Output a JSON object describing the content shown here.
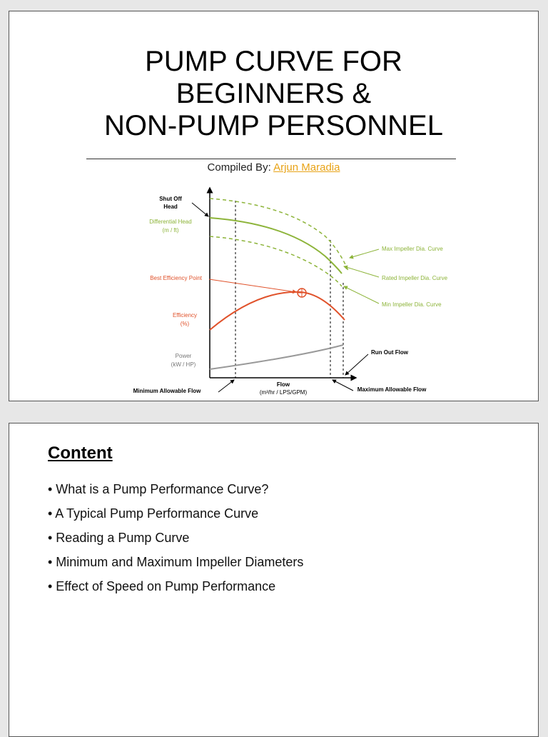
{
  "slide1": {
    "title_lines": [
      "PUMP CURVE FOR",
      "BEGINNERS &",
      "NON-PUMP PERSONNEL"
    ],
    "compiled_by_label": "Compiled By:",
    "author": "Arjun Maradia",
    "diagram": {
      "shut_off_head": [
        "Shut Off",
        "Head"
      ],
      "differential_head": [
        "Differential Head",
        "(m / ft)"
      ],
      "best_efficiency_point": "Best Efficiency Point",
      "efficiency": [
        "Efficiency",
        "(%)"
      ],
      "power": [
        "Power",
        "(kW / HP)"
      ],
      "flow": [
        "Flow",
        "(m³/hr / LPS/GPM)"
      ],
      "minimum_allowable_flow": "Minimum Allowable Flow",
      "maximum_allowable_flow": "Maximum Allowable Flow",
      "run_out_flow": "Run Out Flow",
      "max_impeller_curve": "Max Impeller Dia. Curve",
      "rated_impeller_curve": "Rated Impeller Dia. Curve",
      "min_impeller_curve": "Min Impeller Dia. Curve"
    }
  },
  "slide2": {
    "heading": "Content",
    "items": [
      "• What is a Pump Performance Curve?",
      "• A Typical Pump Performance Curve",
      "• Reading a Pump Curve",
      "• Minimum and Maximum Impeller Diameters",
      "• Effect of Speed on Pump Performance"
    ]
  }
}
